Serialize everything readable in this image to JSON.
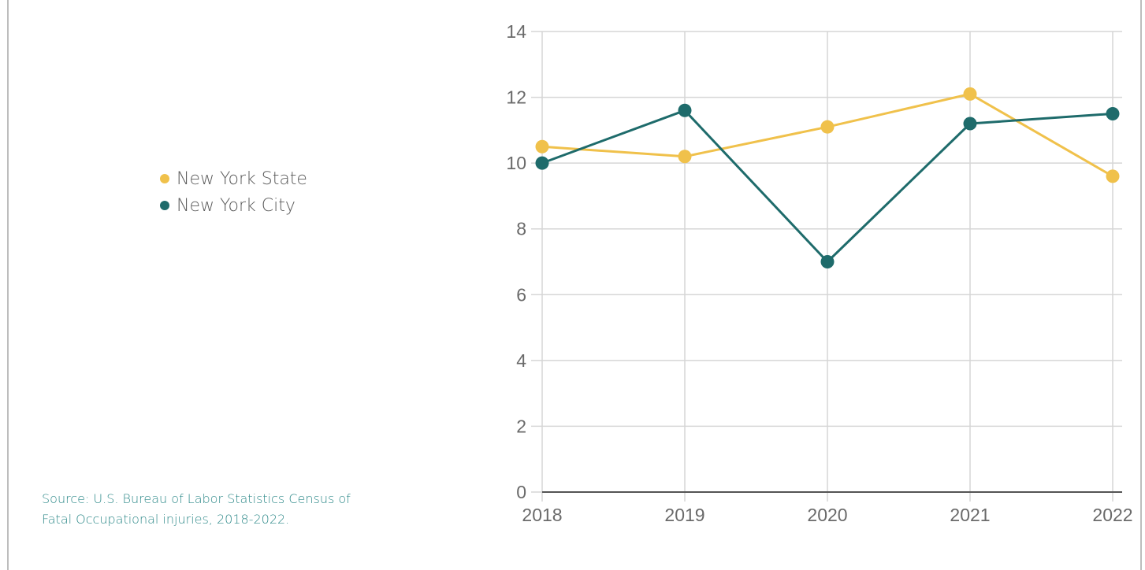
{
  "colors": {
    "new_york_state": "#f0c14b",
    "new_york_city": "#1e6b6b",
    "grid": "#d6d6d6",
    "axis": "#555555",
    "source_text": "#2f8a8a"
  },
  "legend": {
    "items": [
      {
        "label": "New York State",
        "color": "#f0c14b"
      },
      {
        "label": "New York City",
        "color": "#1e6b6b"
      }
    ],
    "placement": "left"
  },
  "source": {
    "line1": "Source: U.S. Bureau of Labor Statistics Census of",
    "line2": "Fatal Occupational injuries, 2018-2022."
  },
  "chart_data": {
    "type": "line",
    "x": [
      "2018",
      "2019",
      "2020",
      "2021",
      "2022"
    ],
    "series": [
      {
        "name": "New York State",
        "color": "#f0c14b",
        "values": [
          10.5,
          10.2,
          11.1,
          12.1,
          9.6
        ]
      },
      {
        "name": "New York City",
        "color": "#1e6b6b",
        "values": [
          10.0,
          11.6,
          7.0,
          11.2,
          11.5
        ]
      }
    ],
    "ylim": [
      0,
      14
    ],
    "yticks": [
      "0",
      "2",
      "4",
      "6",
      "8",
      "10",
      "12",
      "14"
    ],
    "grid": true,
    "title": "",
    "xlabel": "",
    "ylabel": ""
  }
}
